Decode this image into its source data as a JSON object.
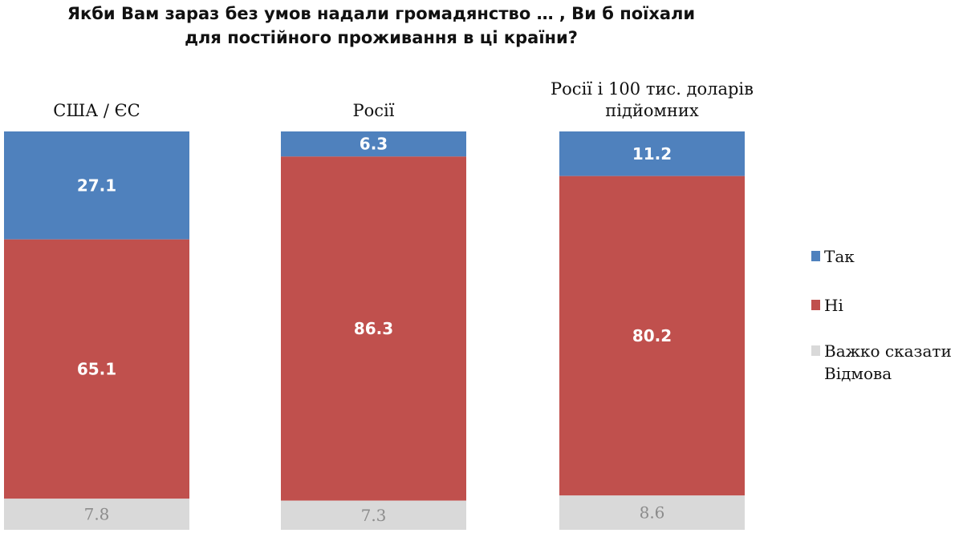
{
  "chart_data": {
    "type": "bar",
    "stacked": true,
    "normalized_percent": true,
    "title_lines": [
      "Якби Вам зараз без умов надали громадянство … , Ви б поїхали",
      "для постійного проживання в ці країни?"
    ],
    "categories": [
      [
        "США / ЄС"
      ],
      [
        "Росії"
      ],
      [
        "Росії і 100 тис. доларів",
        "підйомних"
      ]
    ],
    "series": [
      {
        "name": "Так",
        "color": "#4f81bd",
        "values": [
          27.1,
          6.3,
          11.2
        ]
      },
      {
        "name": "Ні",
        "color": "#c0504d",
        "values": [
          65.1,
          86.3,
          80.2
        ]
      },
      {
        "name": "Важко сказати Відмова",
        "legend_lines": [
          "Важко сказати",
          "Відмова"
        ],
        "color": "#d9d9d9",
        "values": [
          7.8,
          7.3,
          8.6
        ]
      }
    ],
    "ylim": [
      0,
      100
    ],
    "legend_position": "right",
    "grid": false
  }
}
